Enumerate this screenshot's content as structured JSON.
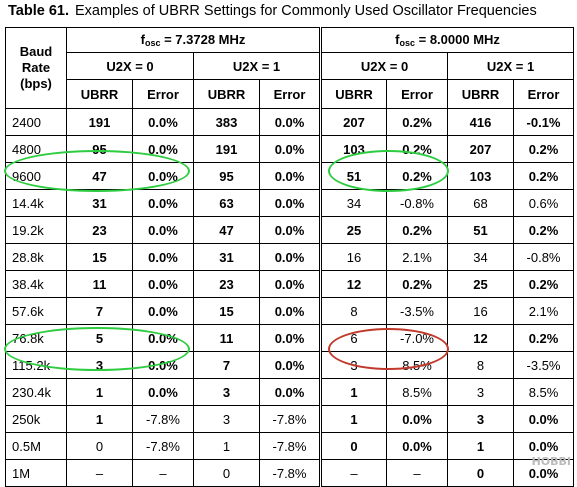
{
  "caption": {
    "number": "Table 61.",
    "text": "Examples of UBRR Settings for Commonly Used Oscillator Frequencies"
  },
  "header": {
    "baud_rate_label": [
      "Baud",
      "Rate",
      "(bps)"
    ],
    "fosc_prefix": "f",
    "fosc_sub": "osc",
    "osc1": " = 7.3728 MHz",
    "osc2": " = 8.0000 MHz",
    "u2x0": "U2X = 0",
    "u2x1": "U2X = 1",
    "ubrr": "UBRR",
    "error": "Error"
  },
  "rows": [
    {
      "baud": "2400",
      "v": [
        [
          "191",
          "b"
        ],
        [
          "0.0%",
          "b"
        ],
        [
          "383",
          "b"
        ],
        [
          "0.0%",
          "b"
        ],
        [
          "207",
          "b"
        ],
        [
          "0.2%",
          "b"
        ],
        [
          "416",
          "b"
        ],
        [
          "-0.1%",
          "b"
        ]
      ]
    },
    {
      "baud": "4800",
      "v": [
        [
          "95",
          "b"
        ],
        [
          "0.0%",
          "b"
        ],
        [
          "191",
          "b"
        ],
        [
          "0.0%",
          "b"
        ],
        [
          "103",
          "b"
        ],
        [
          "0.2%",
          "b"
        ],
        [
          "207",
          "b"
        ],
        [
          "0.2%",
          "b"
        ]
      ]
    },
    {
      "baud": "9600",
      "v": [
        [
          "47",
          "b"
        ],
        [
          "0.0%",
          "b"
        ],
        [
          "95",
          "b"
        ],
        [
          "0.0%",
          "b"
        ],
        [
          "51",
          "b"
        ],
        [
          "0.2%",
          "b"
        ],
        [
          "103",
          "b"
        ],
        [
          "0.2%",
          "b"
        ]
      ]
    },
    {
      "baud": "14.4k",
      "v": [
        [
          "31",
          "b"
        ],
        [
          "0.0%",
          "b"
        ],
        [
          "63",
          "b"
        ],
        [
          "0.0%",
          "b"
        ],
        [
          "34",
          "n"
        ],
        [
          "-0.8%",
          "n"
        ],
        [
          "68",
          "n"
        ],
        [
          "0.6%",
          "n"
        ]
      ]
    },
    {
      "baud": "19.2k",
      "v": [
        [
          "23",
          "b"
        ],
        [
          "0.0%",
          "b"
        ],
        [
          "47",
          "b"
        ],
        [
          "0.0%",
          "b"
        ],
        [
          "25",
          "b"
        ],
        [
          "0.2%",
          "b"
        ],
        [
          "51",
          "b"
        ],
        [
          "0.2%",
          "b"
        ]
      ]
    },
    {
      "baud": "28.8k",
      "v": [
        [
          "15",
          "b"
        ],
        [
          "0.0%",
          "b"
        ],
        [
          "31",
          "b"
        ],
        [
          "0.0%",
          "b"
        ],
        [
          "16",
          "n"
        ],
        [
          "2.1%",
          "n"
        ],
        [
          "34",
          "n"
        ],
        [
          "-0.8%",
          "n"
        ]
      ]
    },
    {
      "baud": "38.4k",
      "v": [
        [
          "11",
          "b"
        ],
        [
          "0.0%",
          "b"
        ],
        [
          "23",
          "b"
        ],
        [
          "0.0%",
          "b"
        ],
        [
          "12",
          "b"
        ],
        [
          "0.2%",
          "b"
        ],
        [
          "25",
          "b"
        ],
        [
          "0.2%",
          "b"
        ]
      ]
    },
    {
      "baud": "57.6k",
      "v": [
        [
          "7",
          "b"
        ],
        [
          "0.0%",
          "b"
        ],
        [
          "15",
          "b"
        ],
        [
          "0.0%",
          "b"
        ],
        [
          "8",
          "n"
        ],
        [
          "-3.5%",
          "n"
        ],
        [
          "16",
          "n"
        ],
        [
          "2.1%",
          "n"
        ]
      ]
    },
    {
      "baud": "76.8k",
      "v": [
        [
          "5",
          "b"
        ],
        [
          "0.0%",
          "b"
        ],
        [
          "11",
          "b"
        ],
        [
          "0.0%",
          "b"
        ],
        [
          "6",
          "n"
        ],
        [
          "-7.0%",
          "n"
        ],
        [
          "12",
          "b"
        ],
        [
          "0.2%",
          "b"
        ]
      ]
    },
    {
      "baud": "115.2k",
      "v": [
        [
          "3",
          "b"
        ],
        [
          "0.0%",
          "b"
        ],
        [
          "7",
          "b"
        ],
        [
          "0.0%",
          "b"
        ],
        [
          "3",
          "n"
        ],
        [
          "8.5%",
          "n"
        ],
        [
          "8",
          "n"
        ],
        [
          "-3.5%",
          "n"
        ]
      ]
    },
    {
      "baud": "230.4k",
      "v": [
        [
          "1",
          "b"
        ],
        [
          "0.0%",
          "b"
        ],
        [
          "3",
          "b"
        ],
        [
          "0.0%",
          "b"
        ],
        [
          "1",
          "b"
        ],
        [
          "8.5%",
          "n"
        ],
        [
          "3",
          "n"
        ],
        [
          "8.5%",
          "n"
        ]
      ]
    },
    {
      "baud": "250k",
      "v": [
        [
          "1",
          "b"
        ],
        [
          "-7.8%",
          "n"
        ],
        [
          "3",
          "n"
        ],
        [
          "-7.8%",
          "n"
        ],
        [
          "1",
          "b"
        ],
        [
          "0.0%",
          "b"
        ],
        [
          "3",
          "b"
        ],
        [
          "0.0%",
          "b"
        ]
      ]
    },
    {
      "baud": "0.5M",
      "v": [
        [
          "0",
          "n"
        ],
        [
          "-7.8%",
          "n"
        ],
        [
          "1",
          "n"
        ],
        [
          "-7.8%",
          "n"
        ],
        [
          "0",
          "b"
        ],
        [
          "0.0%",
          "b"
        ],
        [
          "1",
          "b"
        ],
        [
          "0.0%",
          "b"
        ]
      ]
    },
    {
      "baud": "1M",
      "v": [
        [
          "–",
          "n"
        ],
        [
          "–",
          "n"
        ],
        [
          "0",
          "n"
        ],
        [
          "-7.8%",
          "n"
        ],
        [
          "–",
          "n"
        ],
        [
          "–",
          "n"
        ],
        [
          "0",
          "b"
        ],
        [
          "0.0%",
          "b"
        ]
      ]
    }
  ],
  "highlight_colors": {
    "green": "#2ecc40",
    "red": "#c0392b"
  },
  "watermark": "HOBBI"
}
